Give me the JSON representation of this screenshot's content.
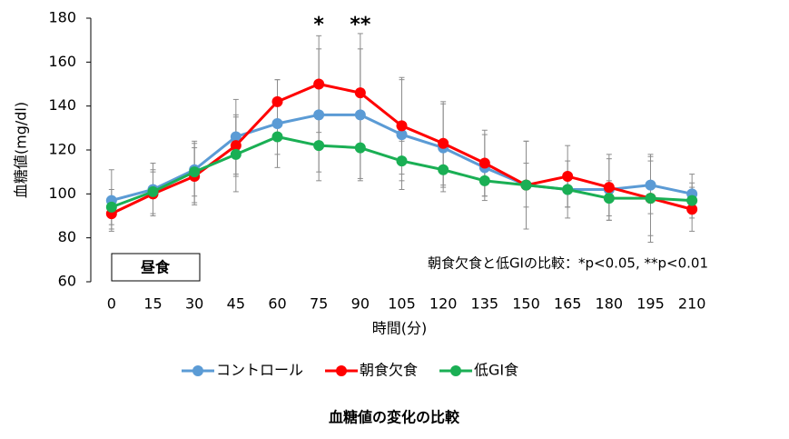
{
  "chart_data": {
    "type": "line",
    "title": "血糖値の変化の比較",
    "xlabel": "時間(分)",
    "ylabel": "血糖値(mg/dl)",
    "categories": [
      "0",
      "15",
      "30",
      "45",
      "60",
      "75",
      "90",
      "105",
      "120",
      "135",
      "150",
      "165",
      "180",
      "195",
      "210"
    ],
    "series": [
      {
        "name": "コントロール",
        "color": "#5b9bd5",
        "values": [
          97,
          102,
          111,
          126,
          132,
          136,
          136,
          127,
          121,
          112,
          104,
          102,
          102,
          104,
          100
        ],
        "errors": [
          14,
          12,
          12,
          17,
          20,
          30,
          30,
          25,
          20,
          15,
          20,
          13,
          14,
          13,
          9
        ]
      },
      {
        "name": "朝食欠食",
        "color": "#ff0000",
        "values": [
          91,
          100,
          108,
          122,
          142,
          150,
          146,
          131,
          123,
          114,
          104,
          108,
          103,
          98,
          93
        ],
        "errors": [
          7,
          10,
          13,
          14,
          10,
          22,
          27,
          22,
          19,
          15,
          20,
          14,
          15,
          17,
          10
        ]
      },
      {
        "name": "低GI食",
        "color": "#1aaf54",
        "values": [
          94,
          101,
          110,
          118,
          126,
          122,
          121,
          115,
          111,
          106,
          104,
          102,
          98,
          98,
          97
        ],
        "errors": [
          8,
          10,
          14,
          17,
          8,
          12,
          14,
          9,
          8,
          7,
          10,
          8,
          8,
          20,
          8
        ]
      }
    ],
    "ylim": [
      60,
      180
    ],
    "yticks": [
      60,
      80,
      100,
      120,
      140,
      160,
      180
    ],
    "annotations": [
      {
        "text": "*",
        "category": "75"
      },
      {
        "text": "**",
        "category": "90"
      }
    ],
    "note": "朝食欠食と低GIの比較：*p<0.05, **p<0.01",
    "box_label": "昼食",
    "legend": "bottom"
  }
}
